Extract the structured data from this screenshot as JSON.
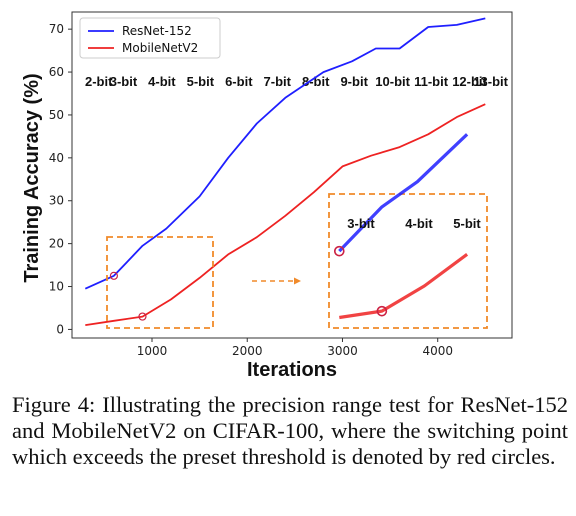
{
  "chart_data": {
    "type": "line",
    "xlabel": "Iterations",
    "ylabel": "Training Accuracy (%)",
    "xlim": [
      160,
      4780
    ],
    "ylim": [
      -2,
      74
    ],
    "x_ticks": [
      1000,
      2000,
      3000,
      4000
    ],
    "y_ticks": [
      0,
      10,
      20,
      30,
      40,
      50,
      60,
      70
    ],
    "grid": false,
    "legend_position": "top-left",
    "series": [
      {
        "name": "ResNet-152",
        "color": "#1f1fff",
        "x": [
          300,
          600,
          900,
          1150,
          1500,
          1800,
          2100,
          2400,
          2800,
          3100,
          3350,
          3600,
          3900,
          4200,
          4500
        ],
        "y": [
          9.5,
          12.5,
          19.5,
          23.5,
          31,
          40,
          48,
          54,
          60,
          62.5,
          65.5,
          65.5,
          70.5,
          71,
          72.5
        ]
      },
      {
        "name": "MobileNetV2",
        "color": "#ee2222",
        "x": [
          300,
          600,
          900,
          1200,
          1500,
          1800,
          2100,
          2400,
          2700,
          3000,
          3300,
          3600,
          3900,
          4200,
          4500
        ],
        "y": [
          1,
          2,
          3,
          7,
          12,
          17.5,
          21.5,
          26.5,
          32,
          38,
          40.5,
          42.5,
          45.5,
          49.5,
          52.5
        ]
      }
    ],
    "switch_points": [
      {
        "series": "ResNet-152",
        "x": 600,
        "y": 12.5
      },
      {
        "series": "MobileNetV2",
        "x": 900,
        "y": 3
      }
    ],
    "bit_labels": [
      "2-bit",
      "3-bit",
      "4-bit",
      "5-bit",
      "6-bit",
      "7-bit",
      "8-bit",
      "9-bit",
      "10-bit",
      "11-bit",
      "12-bit",
      "13-bit"
    ],
    "inset": {
      "bit_labels": [
        "3-bit",
        "4-bit",
        "5-bit"
      ],
      "highlight_color": "#f08a2a"
    }
  },
  "caption": "Figure 4: Illustrating the precision range test for ResNet-152 and MobileNetV2 on CIFAR-100, where the switching point which exceeds the preset threshold is denoted by red circles."
}
